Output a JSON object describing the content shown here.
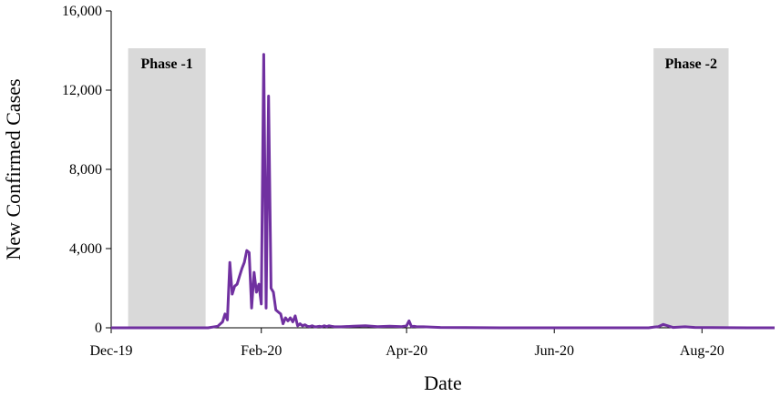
{
  "chart_data": {
    "type": "line",
    "xlabel": "Date",
    "ylabel": "New Confirmed Cases",
    "x_range": [
      "2019-12-01",
      "2020-08-31"
    ],
    "ylim": [
      0,
      16000
    ],
    "y_ticks": [
      0,
      4000,
      8000,
      12000,
      16000
    ],
    "y_tick_labels": [
      "0",
      "4,000",
      "8,000",
      "12,000",
      "16,000"
    ],
    "x_ticks": [
      {
        "date": "2019-12-01",
        "label": "Dec-19"
      },
      {
        "date": "2020-02-01",
        "label": "Feb-20"
      },
      {
        "date": "2020-04-01",
        "label": "Apr-20"
      },
      {
        "date": "2020-06-01",
        "label": "Jun-20"
      },
      {
        "date": "2020-08-01",
        "label": "Aug-20"
      }
    ],
    "grid": false,
    "line_color": "#7030a0",
    "band_color": "#d9d9d9",
    "phases": [
      {
        "label": "Phase -1",
        "start": "2019-12-08",
        "end": "2020-01-09"
      },
      {
        "label": "Phase -2",
        "start": "2020-07-12",
        "end": "2020-08-12"
      }
    ],
    "series": [
      {
        "x": [
          "2019-12-01",
          "2020-01-10",
          "2020-01-14",
          "2020-01-16",
          "2020-01-17",
          "2020-01-18",
          "2020-01-19",
          "2020-01-20",
          "2020-01-21",
          "2020-01-22",
          "2020-01-23",
          "2020-01-24",
          "2020-01-25",
          "2020-01-26",
          "2020-01-27",
          "2020-01-28",
          "2020-01-29",
          "2020-01-30",
          "2020-01-31",
          "2020-02-01",
          "2020-02-02",
          "2020-02-03",
          "2020-02-04",
          "2020-02-05",
          "2020-02-06",
          "2020-02-07",
          "2020-02-08",
          "2020-02-09",
          "2020-02-10",
          "2020-02-11",
          "2020-02-12",
          "2020-02-13",
          "2020-02-14",
          "2020-02-15",
          "2020-02-16",
          "2020-02-17",
          "2020-02-18",
          "2020-02-19",
          "2020-02-20",
          "2020-02-21",
          "2020-02-22",
          "2020-02-23",
          "2020-02-24",
          "2020-02-25",
          "2020-02-26",
          "2020-02-27",
          "2020-02-28",
          "2020-02-29",
          "2020-03-01",
          "2020-03-02",
          "2020-03-05",
          "2020-03-10",
          "2020-03-15",
          "2020-03-20",
          "2020-03-25",
          "2020-03-30",
          "2020-04-01",
          "2020-04-02",
          "2020-04-03",
          "2020-04-04",
          "2020-04-05",
          "2020-04-08",
          "2020-04-15",
          "2020-04-25",
          "2020-05-10",
          "2020-06-01",
          "2020-06-20",
          "2020-07-01",
          "2020-07-10",
          "2020-07-12",
          "2020-07-14",
          "2020-07-16",
          "2020-07-20",
          "2020-07-25",
          "2020-07-27",
          "2020-07-29",
          "2020-08-05",
          "2020-08-20",
          "2020-08-31"
        ],
        "values": [
          0,
          0,
          80,
          300,
          700,
          400,
          3300,
          1700,
          2100,
          2200,
          2600,
          3000,
          3300,
          3900,
          3800,
          1000,
          2800,
          1800,
          2200,
          1200,
          13800,
          1000,
          11700,
          2000,
          1800,
          900,
          800,
          700,
          200,
          500,
          350,
          500,
          300,
          600,
          100,
          200,
          100,
          150,
          80,
          60,
          100,
          50,
          60,
          80,
          50,
          100,
          60,
          100,
          80,
          60,
          50,
          80,
          100,
          60,
          80,
          60,
          100,
          350,
          60,
          80,
          60,
          50,
          20,
          10,
          0,
          0,
          0,
          0,
          0,
          30,
          60,
          170,
          20,
          50,
          30,
          20,
          10,
          0,
          0
        ]
      }
    ]
  }
}
